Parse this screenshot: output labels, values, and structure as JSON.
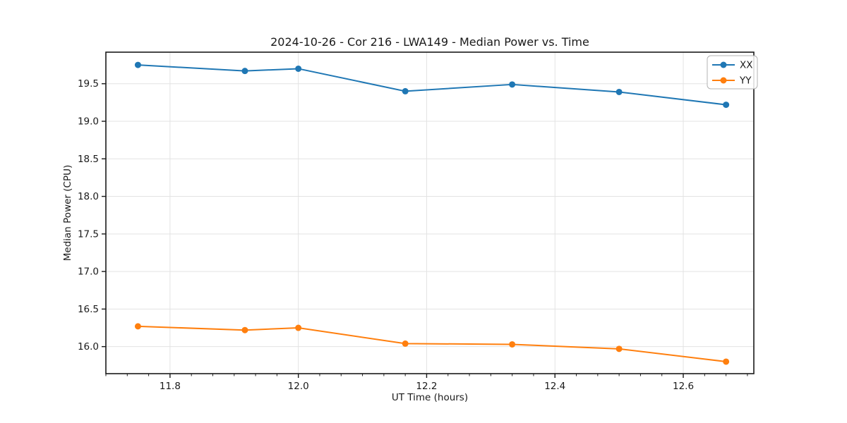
{
  "figure": {
    "title": "2024-10-26 - Cor 216 - LWA149 - Median Power vs. Time",
    "xlabel": "UT Time (hours)",
    "ylabel": "Median Power (CPU)"
  },
  "chart_data": {
    "type": "line",
    "title": "2024-10-26 - Cor 216 - LWA149 - Median Power vs. Time",
    "xlabel": "UT Time (hours)",
    "ylabel": "Median Power (CPU)",
    "x": [
      11.75,
      11.9167,
      12.0,
      12.1667,
      12.3333,
      12.5,
      12.6667
    ],
    "series": [
      {
        "name": "XX",
        "color": "#1f77b4",
        "values": [
          19.75,
          19.67,
          19.7,
          19.4,
          19.49,
          19.39,
          19.22
        ]
      },
      {
        "name": "YY",
        "color": "#ff7f0e",
        "values": [
          16.27,
          16.22,
          16.25,
          16.04,
          16.03,
          15.97,
          15.8
        ]
      }
    ],
    "xlim": [
      11.7,
      12.71
    ],
    "ylim": [
      15.64,
      19.92
    ],
    "xticks": {
      "values": [
        11.8,
        12.0,
        12.2,
        12.4,
        12.6
      ],
      "labels": [
        "11.8",
        "12.0",
        "12.2",
        "12.4",
        "12.6"
      ]
    },
    "yticks": {
      "values": [
        16.0,
        16.5,
        17.0,
        17.5,
        18.0,
        18.5,
        19.0,
        19.5
      ],
      "labels": [
        "16.0",
        "16.5",
        "17.0",
        "17.5",
        "18.0",
        "18.5",
        "19.0",
        "19.5"
      ]
    },
    "x_minor_divisions": 6,
    "x_major_step": 0.2,
    "grid": true,
    "legend_position": "top-right",
    "legend_labels": [
      "XX",
      "YY"
    ],
    "colors": {
      "grid": "#e3e3e3",
      "spine": "#1a1a1a",
      "tick": "#1a1a1a",
      "text": "#1a1a1a",
      "background": "#ffffff",
      "legend_border": "#b3b3b3"
    }
  }
}
